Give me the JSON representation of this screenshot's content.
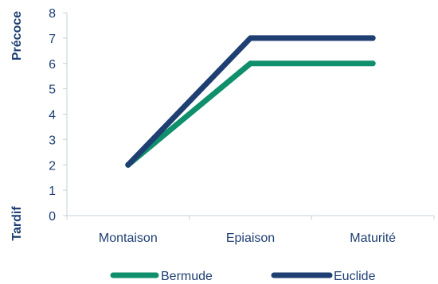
{
  "chart_data": {
    "type": "line",
    "categories": [
      "Montaison",
      "Epiaison",
      "Maturité"
    ],
    "series": [
      {
        "name": "Bermude",
        "values": [
          2,
          6,
          6
        ],
        "color": "#0f8f6b"
      },
      {
        "name": "Euclide",
        "values": [
          2,
          7,
          7
        ],
        "color": "#1f3f73"
      }
    ],
    "yticks": [
      0,
      1,
      2,
      3,
      4,
      5,
      6,
      7,
      8
    ],
    "ylim": [
      0,
      8
    ],
    "y_side_labels": {
      "top": "Précoce",
      "bottom": "Tardif"
    },
    "label_color": "#1f3f73",
    "axis_color": "#c8d0da",
    "grid": false,
    "legend_position": "bottom"
  }
}
